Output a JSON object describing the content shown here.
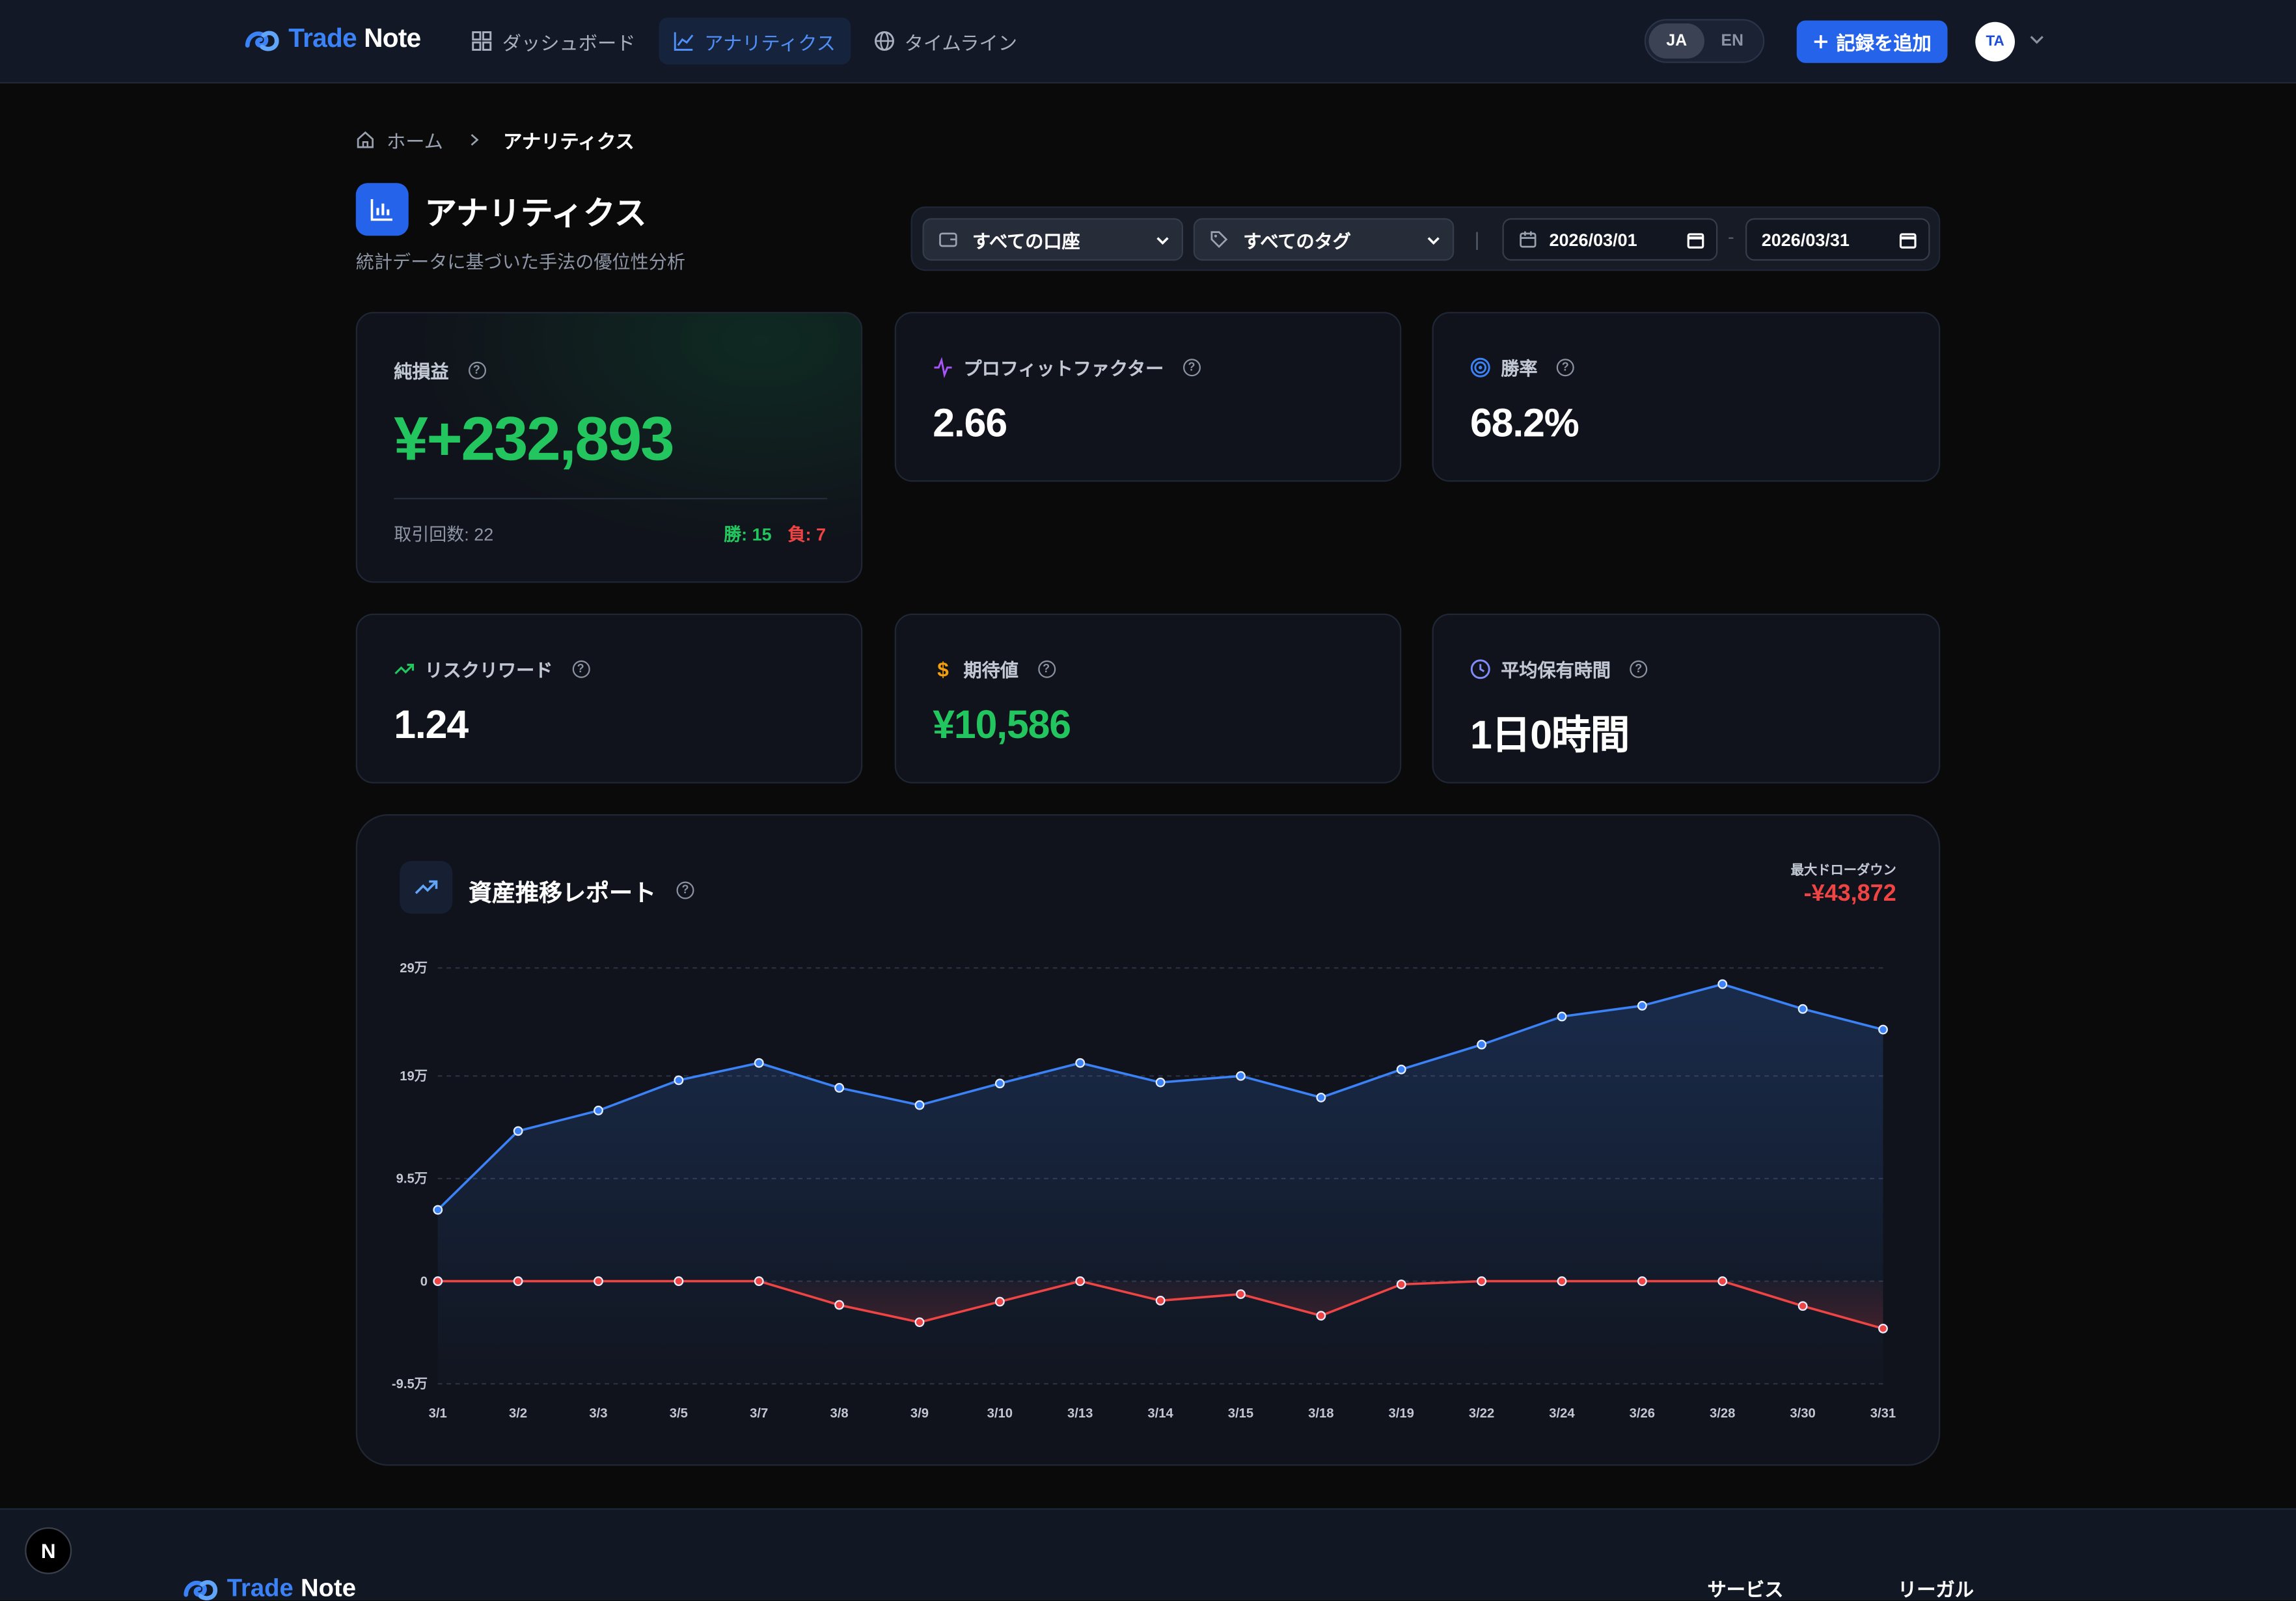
{
  "header": {
    "brand_part1": "Trade",
    "brand_part2": "Note",
    "nav": [
      {
        "label": "ダッシュボード",
        "icon": "grid-icon"
      },
      {
        "label": "アナリティクス",
        "icon": "line-chart-icon"
      },
      {
        "label": "タイムライン",
        "icon": "globe-icon"
      }
    ],
    "lang_ja": "JA",
    "lang_en": "EN",
    "add_label": "記録を追加",
    "avatar_text": "TA"
  },
  "breadcrumb": {
    "home": "ホーム",
    "current": "アナリティクス"
  },
  "page": {
    "title": "アナリティクス",
    "subtitle": "統計データに基づいた手法の優位性分析"
  },
  "filters": {
    "account": "すべての口座",
    "tag": "すべてのタグ",
    "separator": "|",
    "date_from": "2026/03/01",
    "dash": "-",
    "date_to": "2026/03/31"
  },
  "stats": {
    "net": {
      "label": "純損益",
      "value": "¥+232,893",
      "trades": "取引回数: 22",
      "wins": "勝: 15",
      "losses": "負: 7"
    },
    "pf": {
      "label": "プロフィットファクター",
      "value": "2.66"
    },
    "winrate": {
      "label": "勝率",
      "value": "68.2%"
    },
    "rr": {
      "label": "リスクリワード",
      "value": "1.24"
    },
    "exp": {
      "label": "期待値",
      "value": "¥10,586"
    },
    "hold": {
      "label": "平均保有時間",
      "value": "1日0時間"
    }
  },
  "colors": {
    "accent": "#2563eb",
    "positive": "#22c55e",
    "negative": "#ef4444",
    "line": "#3b82f6"
  },
  "chart_card": {
    "title": "資産推移レポート",
    "dd_label": "最大ドローダウン",
    "dd_value": "-¥43,872"
  },
  "chart_data": {
    "type": "line",
    "x": [
      "3/1",
      "3/2",
      "3/3",
      "3/5",
      "3/7",
      "3/8",
      "3/9",
      "3/10",
      "3/13",
      "3/14",
      "3/15",
      "3/18",
      "3/19",
      "3/22",
      "3/24",
      "3/26",
      "3/28",
      "3/30",
      "3/31"
    ],
    "y_ticks": [
      "29万",
      "19万",
      "9.5万",
      "0",
      "-9.5万"
    ],
    "y_tick_values": [
      290000,
      190000,
      95000,
      0,
      -95000
    ],
    "ylim": [
      -95000,
      290000
    ],
    "series": [
      {
        "color": "#3b82f6",
        "values": [
          66000,
          139000,
          158000,
          186000,
          202000,
          179000,
          163000,
          183000,
          202000,
          184000,
          190000,
          170000,
          196000,
          219000,
          245000,
          255000,
          275000,
          252000,
          232893
        ]
      },
      {
        "color": "#ef4444",
        "values": [
          0,
          0,
          0,
          0,
          0,
          -22000,
          -38000,
          -19000,
          0,
          -18000,
          -12000,
          -32000,
          -3000,
          0,
          0,
          0,
          0,
          -23000,
          -43872
        ]
      }
    ],
    "grid": true,
    "legend": "none"
  },
  "footer": {
    "brand_part1": "Trade",
    "brand_part2": "Note",
    "col1": "サービス",
    "col2": "リーガル",
    "badge": "N"
  }
}
